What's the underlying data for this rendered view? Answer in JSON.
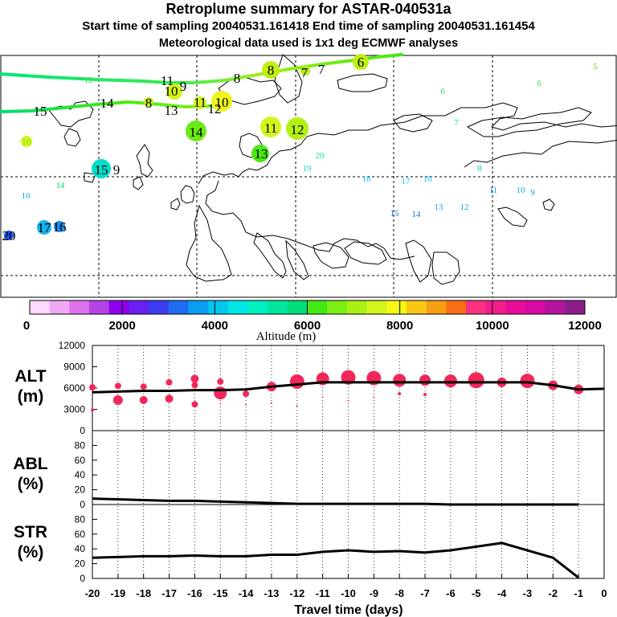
{
  "header": {
    "title": "Retroplume summary for ASTAR-040531a",
    "subtitle": "Start time of sampling 20040531.161418      End time of sampling 20040531.161454",
    "subtitle2": "Meteorological data used is 1x1 deg ECMWF analyses"
  },
  "colorbar": {
    "label": "Altitude (m)",
    "tick_labels": [
      "0",
      "2000",
      "4000",
      "6000",
      "8000",
      "10000",
      "12000"
    ],
    "colors": [
      "#ffd9ff",
      "#f0a8f5",
      "#dd72ee",
      "#b444e4",
      "#9000ee",
      "#6a20f0",
      "#3c3cf0",
      "#1e6cf0",
      "#0a9ef0",
      "#00c8f0",
      "#00e6e6",
      "#00f0c2",
      "#00e69e",
      "#00dc78",
      "#44e814",
      "#7cee14",
      "#aaf014",
      "#d4f41e",
      "#f8f814",
      "#f8c814",
      "#f89e14",
      "#f86e14",
      "#f8327e",
      "#f01e8c",
      "#e80e9a",
      "#d70aa4",
      "#b4149e",
      "#8c1e8c"
    ]
  },
  "map": {
    "labels": [
      {
        "t": "5",
        "x": 741,
        "y": 82,
        "c": "#5ad500",
        "s": 11
      },
      {
        "t": "6",
        "x": 671,
        "y": 103,
        "c": "#3cd650",
        "s": 11
      },
      {
        "t": "6",
        "x": 551,
        "y": 113,
        "c": "#3cd650",
        "s": 11
      },
      {
        "t": "7",
        "x": 568,
        "y": 152,
        "c": "#00dcb4",
        "s": 11
      },
      {
        "t": "8",
        "x": 597,
        "y": 209,
        "c": "#00c8c8",
        "s": 11
      },
      {
        "t": "11",
        "x": 614,
        "y": 236,
        "c": "#0a9ef0",
        "s": 11
      },
      {
        "t": "10",
        "x": 648,
        "y": 236,
        "c": "#0a9ef0",
        "s": 11
      },
      {
        "t": "9",
        "x": 663,
        "y": 239,
        "c": "#0a9ef0",
        "s": 11
      },
      {
        "t": "12",
        "x": 578,
        "y": 257,
        "c": "#0a9ef0",
        "s": 11
      },
      {
        "t": "13",
        "x": 546,
        "y": 257,
        "c": "#0a9ef0",
        "s": 11
      },
      {
        "t": "14",
        "x": 518,
        "y": 266,
        "c": "#1e6cf0",
        "s": 11
      },
      {
        "t": "15",
        "x": 491,
        "y": 265,
        "c": "#1e6cf0",
        "s": 11
      },
      {
        "t": "16",
        "x": 532,
        "y": 222,
        "c": "#00c8f0",
        "s": 11
      },
      {
        "t": "17",
        "x": 505,
        "y": 225,
        "c": "#00c8f0",
        "s": 11
      },
      {
        "t": "18",
        "x": 456,
        "y": 222,
        "c": "#00c8f0",
        "s": 11
      },
      {
        "t": "19",
        "x": 382,
        "y": 209,
        "c": "#00dcb4",
        "s": 11
      },
      {
        "t": "20",
        "x": 398,
        "y": 193,
        "c": "#00e69e",
        "s": 11
      },
      {
        "t": "14",
        "x": 75,
        "y": 230,
        "c": "#00dc78",
        "s": 11
      },
      {
        "t": "10",
        "x": 32,
        "y": 243,
        "c": "#0a9ef0",
        "s": 11
      },
      {
        "t": "16",
        "x": 33,
        "y": 176,
        "c": "#7cee14",
        "s": 12
      },
      {
        "t": "12",
        "x": 110,
        "y": 99,
        "c": "#3cd650",
        "s": 11
      }
    ],
    "big_labels": [
      {
        "t": "15",
        "x": 50,
        "y": 138
      },
      {
        "t": "14",
        "x": 133,
        "y": 128
      },
      {
        "t": "8",
        "x": 185,
        "y": 128
      },
      {
        "t": "13",
        "x": 213,
        "y": 137
      },
      {
        "t": "11",
        "x": 208,
        "y": 100
      },
      {
        "t": "10",
        "x": 213,
        "y": 113
      },
      {
        "t": "9",
        "x": 228,
        "y": 107
      },
      {
        "t": "8",
        "x": 295,
        "y": 97
      },
      {
        "t": "7",
        "x": 400,
        "y": 86
      },
      {
        "t": "7",
        "x": 379,
        "y": 90
      },
      {
        "t": "11",
        "x": 249,
        "y": 127
      },
      {
        "t": "12",
        "x": 267,
        "y": 135
      },
      {
        "t": "10",
        "x": 276,
        "y": 127
      },
      {
        "t": "14",
        "x": 244,
        "y": 164
      },
      {
        "t": "11",
        "x": 337,
        "y": 159
      },
      {
        "t": "12",
        "x": 370,
        "y": 161
      },
      {
        "t": "13",
        "x": 325,
        "y": 191
      },
      {
        "t": "15",
        "x": 126,
        "y": 211
      },
      {
        "t": "9",
        "x": 145,
        "y": 211
      },
      {
        "t": "17",
        "x": 55,
        "y": 283
      },
      {
        "t": "16",
        "x": 74,
        "y": 282
      },
      {
        "t": "20",
        "x": 11,
        "y": 293
      },
      {
        "t": "8",
        "x": 337,
        "y": 87
      },
      {
        "t": "6",
        "x": 449,
        "y": 77
      }
    ]
  },
  "chart_data": [
    {
      "type": "scatter",
      "panel": "ALT",
      "ylabel": "ALT (m)",
      "ylim": [
        0,
        12000
      ],
      "yticks": [
        "0",
        "3000",
        "6000",
        "9000",
        "12000"
      ],
      "xlim": [
        -20,
        0
      ],
      "mean_line": {
        "x": [
          -20,
          -19,
          -18,
          -17,
          -16,
          -15,
          -14,
          -13,
          -12,
          -11,
          -10,
          -9,
          -8,
          -7,
          -6,
          -5,
          -4,
          -3,
          -2,
          -1,
          0
        ],
        "y": [
          5400,
          5500,
          5600,
          5600,
          5700,
          5700,
          5800,
          6200,
          6500,
          6800,
          6800,
          6800,
          6800,
          6800,
          6800,
          6800,
          6800,
          6800,
          6400,
          5800,
          5900
        ]
      },
      "bubbles": [
        {
          "x": -20,
          "y": 6100,
          "r": 4
        },
        {
          "x": -20,
          "y": 2900,
          "r": 2
        },
        {
          "x": -19,
          "y": 6300,
          "r": 4
        },
        {
          "x": -19,
          "y": 4300,
          "r": 6
        },
        {
          "x": -18,
          "y": 6200,
          "r": 4
        },
        {
          "x": -18,
          "y": 4300,
          "r": 5
        },
        {
          "x": -17,
          "y": 6800,
          "r": 4
        },
        {
          "x": -17,
          "y": 4500,
          "r": 5
        },
        {
          "x": -16,
          "y": 7300,
          "r": 5
        },
        {
          "x": -16,
          "y": 6400,
          "r": 4
        },
        {
          "x": -16,
          "y": 3700,
          "r": 4
        },
        {
          "x": -15,
          "y": 6900,
          "r": 4
        },
        {
          "x": -15,
          "y": 5300,
          "r": 8
        },
        {
          "x": -15,
          "y": 3800,
          "r": 1
        },
        {
          "x": -14,
          "y": 5200,
          "r": 4
        },
        {
          "x": -14,
          "y": 3700,
          "r": 1
        },
        {
          "x": -13,
          "y": 6200,
          "r": 6
        },
        {
          "x": -13,
          "y": 3900,
          "r": 1
        },
        {
          "x": -12,
          "y": 6900,
          "r": 9
        },
        {
          "x": -12,
          "y": 3500,
          "r": 1
        },
        {
          "x": -11,
          "y": 7300,
          "r": 8
        },
        {
          "x": -11,
          "y": 4700,
          "r": 1
        },
        {
          "x": -10,
          "y": 7500,
          "r": 9
        },
        {
          "x": -10,
          "y": 4200,
          "r": 1
        },
        {
          "x": -9,
          "y": 7400,
          "r": 9
        },
        {
          "x": -9,
          "y": 4700,
          "r": 1
        },
        {
          "x": -8,
          "y": 7100,
          "r": 8
        },
        {
          "x": -8,
          "y": 5200,
          "r": 2
        },
        {
          "x": -7,
          "y": 7100,
          "r": 7
        },
        {
          "x": -7,
          "y": 5100,
          "r": 2
        },
        {
          "x": -6,
          "y": 7000,
          "r": 8
        },
        {
          "x": -5,
          "y": 7100,
          "r": 10
        },
        {
          "x": -4,
          "y": 6800,
          "r": 6
        },
        {
          "x": -3,
          "y": 7000,
          "r": 9
        },
        {
          "x": -2,
          "y": 6400,
          "r": 6
        },
        {
          "x": -1,
          "y": 5800,
          "r": 6
        }
      ]
    },
    {
      "type": "line",
      "panel": "ABL",
      "ylabel": "ABL (%)",
      "ylim": [
        0,
        100
      ],
      "yticks": [
        "0",
        "20",
        "40",
        "60",
        "80"
      ],
      "x": [
        -20,
        -19,
        -18,
        -17,
        -16,
        -15,
        -14,
        -13,
        -12,
        -11,
        -10,
        -9,
        -8,
        -7,
        -6,
        -5,
        -4,
        -3,
        -2,
        -1
      ],
      "values": [
        8,
        7,
        6,
        5,
        5,
        4,
        3,
        2,
        1,
        1,
        1,
        1,
        1,
        1,
        0,
        0,
        0,
        0,
        0,
        0
      ]
    },
    {
      "type": "line",
      "panel": "STR",
      "ylabel": "STR (%)",
      "ylim": [
        0,
        100
      ],
      "yticks": [
        "0",
        "20",
        "40",
        "60",
        "80"
      ],
      "x": [
        -20,
        -19,
        -18,
        -17,
        -16,
        -15,
        -14,
        -13,
        -12,
        -11,
        -10,
        -9,
        -8,
        -7,
        -6,
        -5,
        -4,
        -3,
        -2,
        -1
      ],
      "values": [
        28,
        29,
        30,
        30,
        31,
        30,
        30,
        32,
        32,
        36,
        38,
        36,
        37,
        35,
        38,
        43,
        48,
        38,
        28,
        1
      ],
      "xlabel": "Travel time (days)",
      "xtick_labels": [
        "-20",
        "-19",
        "-18",
        "-17",
        "-16",
        "-15",
        "-14",
        "-13",
        "-12",
        "-11",
        "-10",
        "-9",
        "-8",
        "-7",
        "-6",
        "-5",
        "-4",
        "-3",
        "-2",
        "-1",
        "0"
      ]
    }
  ]
}
